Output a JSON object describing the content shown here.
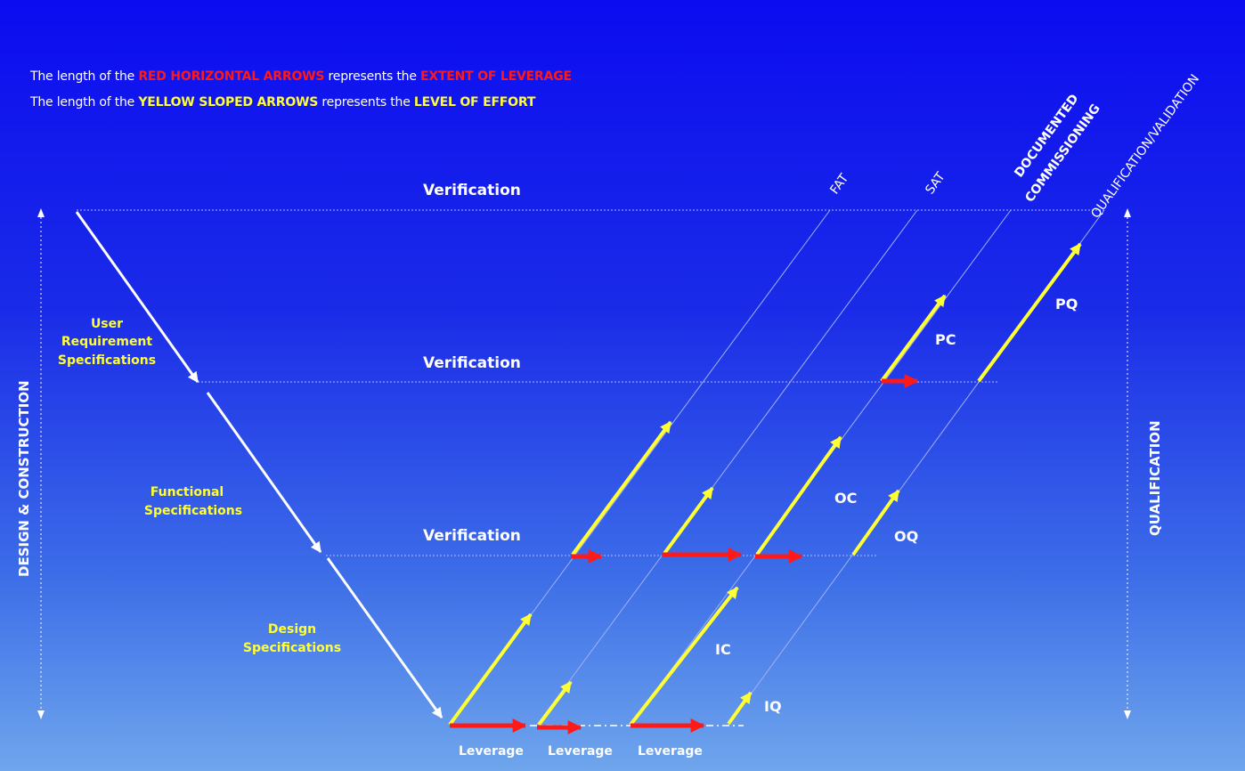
{
  "legend": {
    "line1": {
      "prefix": "The length of the ",
      "highlight1": "RED HORIZONTAL ARROWS",
      "middle": " represents the ",
      "highlight2": "EXTENT OF LEVERAGE"
    },
    "line2": {
      "prefix": "The length of the ",
      "highlight1": "YELLOW SLOPED ARROWS",
      "middle": " represents the ",
      "highlight2": "LEVEL OF EFFORT"
    }
  },
  "verification": {
    "top": "Verification",
    "urs": "Verification",
    "fs": "Verification"
  },
  "specs": {
    "urs": [
      "User",
      "Requirement",
      "Specifications"
    ],
    "fs": [
      "Functional",
      "Specifications"
    ],
    "ds": [
      "Design",
      "Specifications"
    ]
  },
  "phases": {
    "fat": "FAT",
    "sat": "SAT",
    "documented": [
      "DOCUMENTED",
      "COMMISSIONING"
    ],
    "qualification_validation": "QUALIFICATION/VALIDATION"
  },
  "codes": {
    "pc": "PC",
    "pq": "PQ",
    "oc": "OC",
    "oq": "OQ",
    "ic": "IC",
    "iq": "IQ"
  },
  "leverage": [
    "Leverage",
    "Leverage",
    "Leverage"
  ],
  "side": {
    "left": "DESIGN & CONSTRUCTION",
    "right": "QUALIFICATION"
  },
  "colors": {
    "background_top": "#0c0cf0",
    "background_bottom": "#6fa6ec",
    "red_arrow": "#ff1a1a",
    "yellow_arrow": "#ffff33",
    "white": "#ffffff"
  }
}
